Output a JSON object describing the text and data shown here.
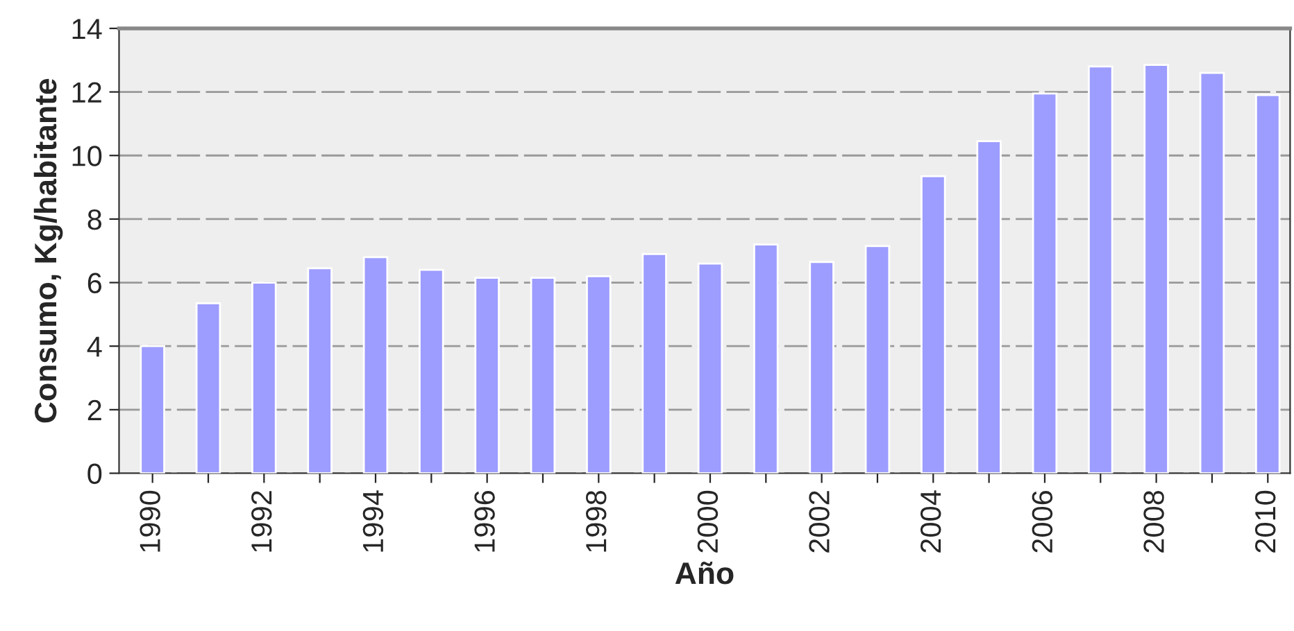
{
  "chart_data": {
    "type": "bar",
    "xlabel": "Año",
    "ylabel": "Consumo, Kg/habitante",
    "categories": [
      "1990",
      null,
      "1992",
      null,
      "1994",
      null,
      "1996",
      null,
      "1998",
      null,
      "2000",
      null,
      "2002",
      null,
      "2004",
      null,
      "2006",
      null,
      "2008",
      null,
      "2010"
    ],
    "series": [
      {
        "color": "#9d9cff",
        "values": [
          4.0,
          5.35,
          6.0,
          6.45,
          6.8,
          6.4,
          6.15,
          6.15,
          6.2,
          6.9,
          6.6,
          7.2,
          6.65,
          7.15,
          9.35,
          10.45,
          11.95,
          12.8,
          12.85,
          12.6,
          11.9
        ]
      }
    ],
    "ylim": [
      0,
      14
    ],
    "yticks": [
      0,
      2,
      4,
      6,
      8,
      10,
      12,
      14
    ],
    "grid": "y",
    "legend": false
  }
}
